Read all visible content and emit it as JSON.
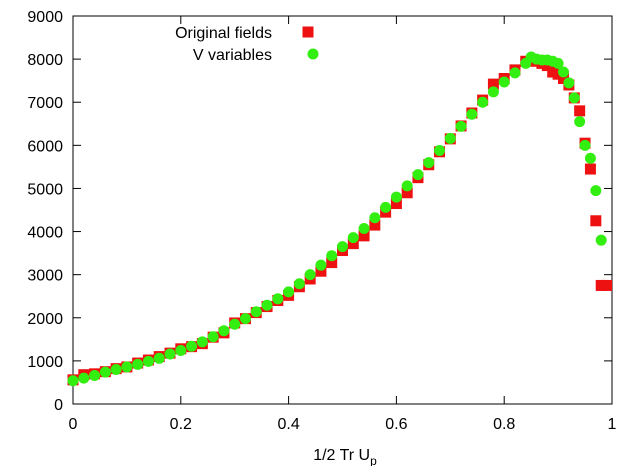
{
  "chart_data": {
    "type": "scatter",
    "xlabel": "1/2 Tr U",
    "xlabel_sub": "p",
    "ylabel": "",
    "title": "",
    "xlim": [
      0,
      1
    ],
    "ylim": [
      0,
      9000
    ],
    "x_ticks": [
      "0",
      "0.2",
      "0.4",
      "0.6",
      "0.8",
      "1"
    ],
    "y_ticks": [
      "0",
      "1000",
      "2000",
      "3000",
      "4000",
      "5000",
      "6000",
      "7000",
      "8000",
      "9000"
    ],
    "grid": false,
    "legend_position": "top-left",
    "series": [
      {
        "name": "Original fields",
        "marker": "square",
        "color": "#ee1111",
        "x": [
          0.0,
          0.02,
          0.04,
          0.06,
          0.08,
          0.1,
          0.12,
          0.14,
          0.16,
          0.18,
          0.2,
          0.22,
          0.24,
          0.26,
          0.28,
          0.3,
          0.32,
          0.34,
          0.36,
          0.38,
          0.4,
          0.42,
          0.44,
          0.46,
          0.48,
          0.5,
          0.52,
          0.54,
          0.56,
          0.58,
          0.6,
          0.62,
          0.64,
          0.66,
          0.68,
          0.7,
          0.72,
          0.74,
          0.76,
          0.78,
          0.8,
          0.82,
          0.84,
          0.86,
          0.87,
          0.88,
          0.89,
          0.9,
          0.91,
          0.92,
          0.93,
          0.94,
          0.95,
          0.96,
          0.97,
          0.98,
          0.99
        ],
        "y": [
          560,
          680,
          700,
          750,
          820,
          860,
          950,
          1020,
          1100,
          1180,
          1280,
          1330,
          1400,
          1550,
          1650,
          1880,
          1980,
          2120,
          2260,
          2400,
          2520,
          2720,
          2900,
          3080,
          3280,
          3560,
          3720,
          3900,
          4150,
          4450,
          4650,
          4900,
          5250,
          5550,
          5850,
          6150,
          6450,
          6750,
          7050,
          7420,
          7550,
          7750,
          7950,
          7950,
          7900,
          7850,
          7700,
          7650,
          7550,
          7400,
          7100,
          6800,
          6050,
          5450,
          4250,
          2750,
          2750
        ]
      },
      {
        "name": "V variables",
        "marker": "circle",
        "color": "#33ee11",
        "x": [
          0.0,
          0.02,
          0.04,
          0.06,
          0.08,
          0.1,
          0.12,
          0.14,
          0.16,
          0.18,
          0.2,
          0.22,
          0.24,
          0.26,
          0.28,
          0.3,
          0.32,
          0.34,
          0.36,
          0.38,
          0.4,
          0.42,
          0.44,
          0.46,
          0.48,
          0.5,
          0.52,
          0.54,
          0.56,
          0.58,
          0.6,
          0.62,
          0.64,
          0.66,
          0.68,
          0.7,
          0.72,
          0.74,
          0.76,
          0.78,
          0.8,
          0.82,
          0.84,
          0.85,
          0.86,
          0.87,
          0.88,
          0.89,
          0.9,
          0.91,
          0.92,
          0.93,
          0.94,
          0.95,
          0.96,
          0.97,
          0.98
        ],
        "y": [
          540,
          600,
          660,
          740,
          800,
          860,
          920,
          990,
          1060,
          1160,
          1240,
          1340,
          1440,
          1560,
          1700,
          1850,
          1980,
          2140,
          2290,
          2440,
          2600,
          2790,
          3000,
          3220,
          3440,
          3650,
          3860,
          4070,
          4320,
          4560,
          4800,
          5060,
          5320,
          5600,
          5880,
          6160,
          6440,
          6720,
          7000,
          7240,
          7470,
          7680,
          7900,
          8050,
          8000,
          7980,
          7980,
          7950,
          7900,
          7700,
          7450,
          7100,
          6550,
          6000,
          5700,
          4950,
          3800
        ]
      }
    ]
  }
}
